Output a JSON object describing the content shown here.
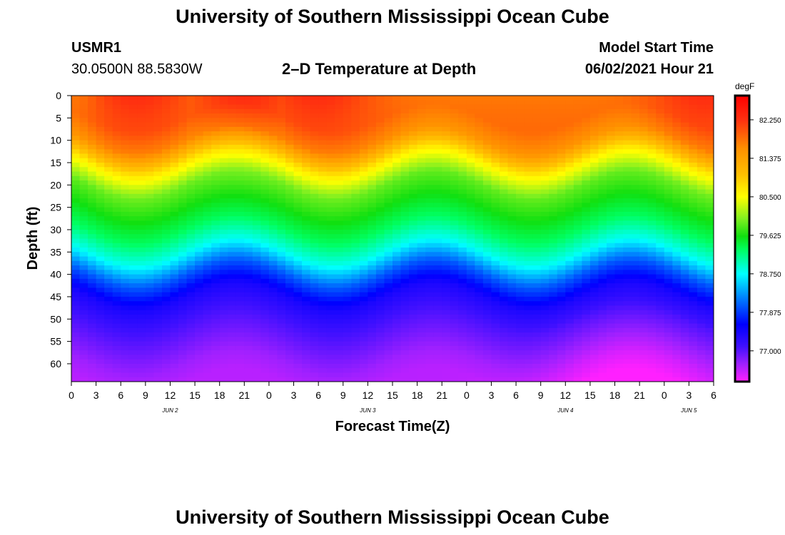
{
  "header": {
    "title_top": "University of Southern Mississippi Ocean Cube",
    "station_id": "USMR1",
    "coordinates": "30.0500N  88.5830W",
    "plot_title": "2–D Temperature at Depth",
    "model_start_label": "Model Start Time",
    "model_start_value": "06/02/2021 Hour 21"
  },
  "footer": {
    "title_bottom": "University of Southern Mississippi Ocean Cube"
  },
  "colors": {
    "field_top": "#ff3a10",
    "field_green": "#18e018",
    "field_cyan": "#00ffff",
    "field_blue": "#1010ff",
    "field_bottom": "#c020ff"
  },
  "chart_data": {
    "type": "heatmap",
    "title": "2–D Temperature at Depth",
    "xlabel": "Forecast Time(Z)",
    "ylabel": "Depth (ft)",
    "units": "degF",
    "x_tick_labels": [
      "0",
      "3",
      "6",
      "9",
      "12",
      "15",
      "18",
      "21",
      "0",
      "3",
      "6",
      "9",
      "12",
      "15",
      "18",
      "21",
      "0",
      "3",
      "6",
      "9",
      "12",
      "15",
      "18",
      "21",
      "0",
      "3",
      "6"
    ],
    "x_range_hours": [
      0,
      78
    ],
    "date_labels": [
      {
        "label": "JUN 2",
        "hour": 12
      },
      {
        "label": "JUN 3",
        "hour": 36
      },
      {
        "label": "JUN 4",
        "hour": 60
      },
      {
        "label": "JUN 5",
        "hour": 75
      }
    ],
    "y_tick_labels": [
      "0",
      "5",
      "10",
      "15",
      "20",
      "25",
      "30",
      "35",
      "40",
      "45",
      "50",
      "55",
      "60"
    ],
    "y_range_ft": [
      0,
      64
    ],
    "colorbar": {
      "range": [
        76.3,
        82.8
      ],
      "tick_labels": [
        "82.250",
        "81.375",
        "80.500",
        "79.625",
        "78.750",
        "77.875",
        "77.000"
      ],
      "tick_values": [
        82.25,
        81.375,
        80.5,
        79.625,
        78.75,
        77.875,
        77.0
      ],
      "color_stops": [
        {
          "value": 76.3,
          "color": "#ff20ff"
        },
        {
          "value": 76.7,
          "color": "#a020ff"
        },
        {
          "value": 77.1,
          "color": "#4010ff"
        },
        {
          "value": 77.6,
          "color": "#0000ff"
        },
        {
          "value": 78.2,
          "color": "#0080ff"
        },
        {
          "value": 78.75,
          "color": "#00ffff"
        },
        {
          "value": 79.3,
          "color": "#00ff60"
        },
        {
          "value": 79.6,
          "color": "#10e010"
        },
        {
          "value": 80.0,
          "color": "#80f020"
        },
        {
          "value": 80.5,
          "color": "#ffff00"
        },
        {
          "value": 81.0,
          "color": "#ffc000"
        },
        {
          "value": 81.6,
          "color": "#ff9000"
        },
        {
          "value": 82.25,
          "color": "#ff3010"
        },
        {
          "value": 82.8,
          "color": "#ff0000"
        }
      ]
    },
    "depth_profile": {
      "depths_ft": [
        0,
        5,
        10,
        15,
        20,
        25,
        30,
        35,
        40,
        45,
        50,
        55,
        60,
        64
      ],
      "temps_degF": [
        81.9,
        81.9,
        81.6,
        80.6,
        79.9,
        79.6,
        79.3,
        78.8,
        78.0,
        77.4,
        77.1,
        76.9,
        76.7,
        76.6
      ]
    },
    "surface_warm_peaks_hour": [
      8,
      21,
      30,
      77
    ],
    "thermocline_wave_period_hours": 24
  }
}
